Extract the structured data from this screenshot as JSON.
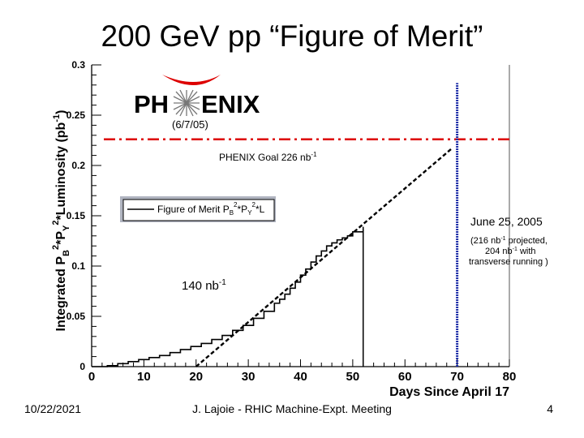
{
  "slide": {
    "title": "200 GeV pp “Figure of Merit”",
    "footer_date": "10/22/2021",
    "footer_center": "J. Lajoie - RHIC Machine-Expt. Meeting",
    "page_number": "4"
  },
  "colors": {
    "goal_line": "#dd0000",
    "june_marker": "#1f2fa8",
    "logo_arc": "#dd0000",
    "legend_shadow": "#b0b4c0"
  },
  "chart_data": {
    "type": "line",
    "title": "",
    "xlabel": "Days Since April 17",
    "ylabel": "Integrated P_B^2*P_Y^2*Luminosity (pb^-1)",
    "xlim": [
      0,
      80
    ],
    "ylim": [
      0,
      0.3
    ],
    "x_ticks": [
      "0",
      "10",
      "20",
      "30",
      "40",
      "50",
      "60",
      "70",
      "80"
    ],
    "y_ticks": [
      "0",
      "0.05",
      "0.1",
      "0.15",
      "0.2",
      "0.25",
      "0.3"
    ],
    "grid": false,
    "legend": {
      "position": "upper-left",
      "entries": [
        "Figure of Merit P_B^2*P_Y^2*L"
      ]
    },
    "series": [
      {
        "name": "Figure of Merit P_B^2*P_Y^2*L",
        "style": "step",
        "x": [
          3,
          5,
          7,
          9,
          11,
          13,
          15,
          17,
          19,
          21,
          23,
          25,
          27,
          29,
          31,
          33,
          35,
          36,
          37,
          38,
          39,
          40,
          41,
          42,
          43,
          44,
          45,
          46,
          47,
          48,
          49,
          50,
          52
        ],
        "y": [
          0.001,
          0.003,
          0.005,
          0.007,
          0.009,
          0.011,
          0.014,
          0.017,
          0.02,
          0.023,
          0.027,
          0.031,
          0.036,
          0.041,
          0.048,
          0.055,
          0.063,
          0.067,
          0.072,
          0.078,
          0.084,
          0.091,
          0.097,
          0.104,
          0.11,
          0.115,
          0.12,
          0.123,
          0.126,
          0.128,
          0.13,
          0.134,
          0.137
        ]
      },
      {
        "name": "",
        "style": "dashed",
        "x": [
          20,
          69
        ],
        "y": [
          0,
          0.217
        ]
      }
    ],
    "reference_lines": [
      {
        "orientation": "horizontal",
        "value": 0.226,
        "style": "dash-dot",
        "color": "#dd0000"
      },
      {
        "orientation": "vertical",
        "value": 70,
        "style": "dotted",
        "color": "#1f2fa8"
      },
      {
        "orientation": "vertical",
        "value": 52,
        "style": "solid",
        "color": "#000000",
        "from": 0,
        "to": 0.139
      },
      {
        "orientation": "vertical",
        "value": 80,
        "style": "solid",
        "color": "#555555",
        "from": 0,
        "to": 0.3
      }
    ],
    "annotations": {
      "logo_date": "(6/7/05)",
      "goal": "PHENIX Goal 226 nb",
      "goal_exp": "-1",
      "june": "June 25, 2005",
      "projected_1": "(216 nb",
      "projected_1b": " projected,",
      "projected_2": "204 nb",
      "projected_2b": " with",
      "projected_3": "transverse running )",
      "small_exp": "-1",
      "current": "140 nb",
      "current_exp": "-1"
    },
    "logo": {
      "text_left": "PH",
      "text_right": "ENIX"
    }
  }
}
